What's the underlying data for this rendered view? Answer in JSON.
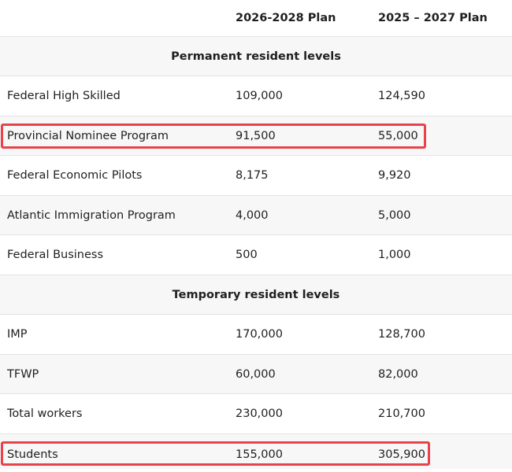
{
  "header": {
    "col1": "",
    "col2": "2026-2028 Plan",
    "col3": "2025 – 2027 Plan"
  },
  "sections": [
    {
      "title": "Permanent resident levels",
      "rows": [
        {
          "name": "Federal High Skilled",
          "plan_2026_2028": "109,000",
          "plan_2025_2027": "124,590"
        },
        {
          "name": "Provincial Nominee Program",
          "plan_2026_2028": "91,500",
          "plan_2025_2027": "55,000",
          "highlighted": true
        },
        {
          "name": "Federal Economic Pilots",
          "plan_2026_2028": "8,175",
          "plan_2025_2027": "9,920"
        },
        {
          "name": "Atlantic Immigration Program",
          "plan_2026_2028": "4,000",
          "plan_2025_2027": "5,000"
        },
        {
          "name": "Federal Business",
          "plan_2026_2028": "500",
          "plan_2025_2027": "1,000"
        }
      ]
    },
    {
      "title": "Temporary resident levels",
      "rows": [
        {
          "name": "IMP",
          "plan_2026_2028": "170,000",
          "plan_2025_2027": "128,700"
        },
        {
          "name": "TFWP",
          "plan_2026_2028": "60,000",
          "plan_2025_2027": "82,000"
        },
        {
          "name": "Total workers",
          "plan_2026_2028": "230,000",
          "plan_2025_2027": "210,700"
        },
        {
          "name": "Students",
          "plan_2026_2028": "155,000",
          "plan_2025_2027": "305,900",
          "highlighted": true
        }
      ]
    }
  ],
  "colors": {
    "highlight_border": "#e8424a",
    "row_alt_background": "#f7f7f8",
    "divider": "#e3e3e3"
  }
}
